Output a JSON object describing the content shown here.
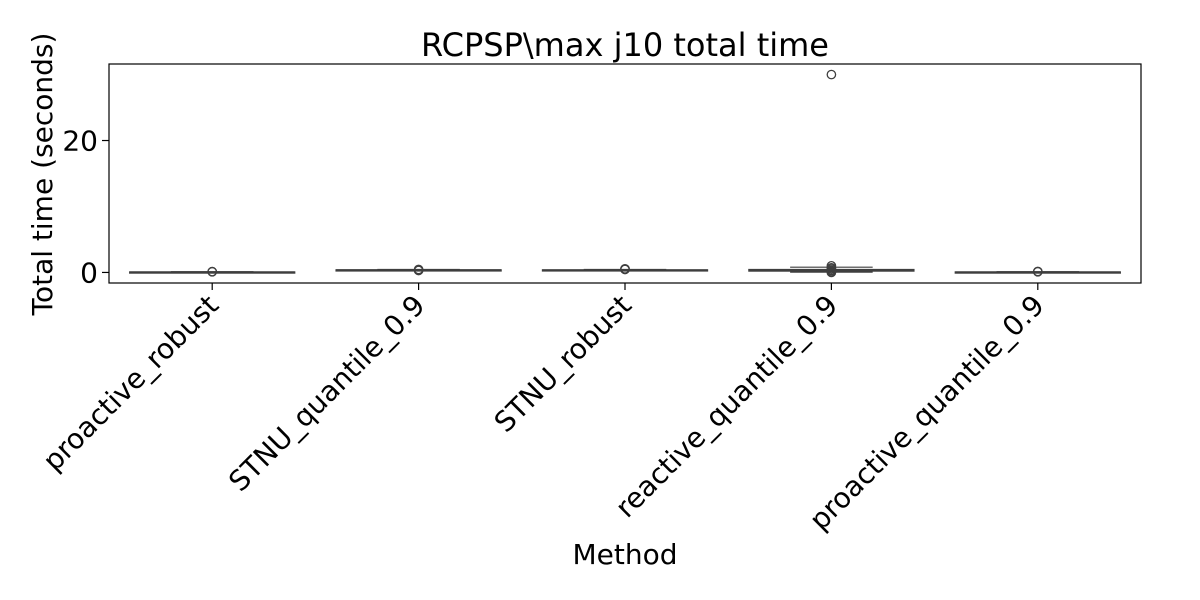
{
  "chart_data": {
    "type": "box",
    "title": "RCPSP\\max j10 total time",
    "xlabel": "Method",
    "ylabel": "Total time (seconds)",
    "ylim": [
      -1.6,
      31.6
    ],
    "yticks": [
      0,
      20
    ],
    "grid": false,
    "legend": "none",
    "categories": [
      "proactive_robust",
      "STNU_quantile_0.9",
      "STNU_robust",
      "reactive_quantile_0.9",
      "proactive_quantile_0.9"
    ],
    "series": [
      {
        "name": "",
        "boxes": [
          {
            "whisker_low": 0.03,
            "q1": 0.05,
            "median": 0.06,
            "q3": 0.08,
            "whisker_high": 0.1,
            "outliers": [
              0.1,
              0.12
            ]
          },
          {
            "whisker_low": 0.3,
            "q1": 0.35,
            "median": 0.38,
            "q3": 0.4,
            "whisker_high": 0.45,
            "outliers": [
              0.3,
              0.35,
              0.45
            ]
          },
          {
            "whisker_low": 0.3,
            "q1": 0.33,
            "median": 0.36,
            "q3": 0.4,
            "whisker_high": 0.45,
            "outliers": [
              0.45,
              0.5,
              0.55
            ]
          },
          {
            "whisker_low": 0.05,
            "q1": 0.2,
            "median": 0.3,
            "q3": 0.45,
            "whisker_high": 0.8,
            "outliers": [
              30.0,
              1.0,
              0.7,
              0.5,
              0.3,
              0.1,
              0.0
            ]
          },
          {
            "whisker_low": 0.03,
            "q1": 0.05,
            "median": 0.06,
            "q3": 0.08,
            "whisker_high": 0.1,
            "outliers": [
              0.1,
              0.15
            ]
          }
        ]
      }
    ],
    "colors": {
      "box_fill": "#ffffff",
      "box_edge": "#3f3f3f",
      "outlier_edge": "#3f3f3f",
      "axis": "#000000"
    }
  }
}
